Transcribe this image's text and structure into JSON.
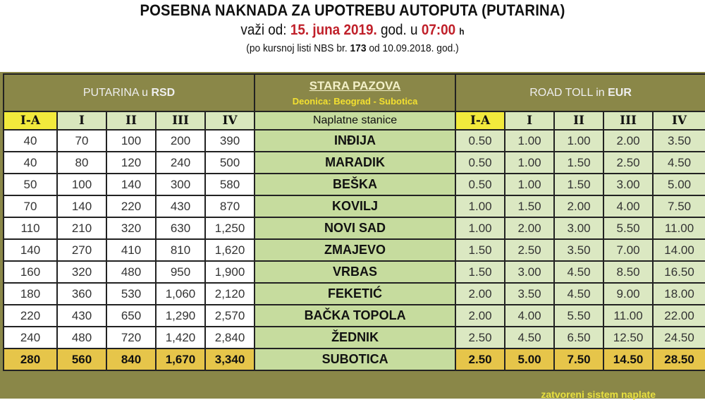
{
  "title": "POSEBNA NAKNADA ZA UPOTREBU AUTOPUTA (PUTARINA)",
  "validity": {
    "prefix": "važi od:",
    "date": "15. juna 2019.",
    "mid": "god. u",
    "time": "07:00",
    "unit": "h"
  },
  "rate_note": {
    "prefix": "(po kursnoj listi NBS br.",
    "number": "173",
    "suffix": "od 10.09.2018. god.)"
  },
  "rsd_header": {
    "text": "PUTARINA u",
    "currency": "RSD"
  },
  "eur_header": {
    "text": "ROAD TOLL in",
    "currency": "EUR"
  },
  "station_header": {
    "title": "STARA PAZOVA",
    "section": "Deonica: Beograd - Subotica",
    "column": "Naplatne stanice"
  },
  "categories": [
    "I-A",
    "I",
    "II",
    "III",
    "IV"
  ],
  "rows": [
    {
      "station": "INĐIJA",
      "rsd": [
        "40",
        "70",
        "100",
        "200",
        "390"
      ],
      "eur": [
        "0.50",
        "1.00",
        "1.00",
        "2.00",
        "3.50"
      ]
    },
    {
      "station": "MARADIK",
      "rsd": [
        "40",
        "80",
        "120",
        "240",
        "500"
      ],
      "eur": [
        "0.50",
        "1.00",
        "1.50",
        "2.50",
        "4.50"
      ]
    },
    {
      "station": "BEŠKA",
      "rsd": [
        "50",
        "100",
        "140",
        "300",
        "580"
      ],
      "eur": [
        "0.50",
        "1.00",
        "1.50",
        "3.00",
        "5.00"
      ]
    },
    {
      "station": "KOVILJ",
      "rsd": [
        "70",
        "140",
        "220",
        "430",
        "870"
      ],
      "eur": [
        "1.00",
        "1.50",
        "2.00",
        "4.00",
        "7.50"
      ]
    },
    {
      "station": "NOVI SAD",
      "rsd": [
        "110",
        "210",
        "320",
        "630",
        "1,250"
      ],
      "eur": [
        "1.00",
        "2.00",
        "3.00",
        "5.50",
        "11.00"
      ]
    },
    {
      "station": "ZMAJEVO",
      "rsd": [
        "140",
        "270",
        "410",
        "810",
        "1,620"
      ],
      "eur": [
        "1.50",
        "2.50",
        "3.50",
        "7.00",
        "14.00"
      ]
    },
    {
      "station": "VRBAS",
      "rsd": [
        "160",
        "320",
        "480",
        "950",
        "1,900"
      ],
      "eur": [
        "1.50",
        "3.00",
        "4.50",
        "8.50",
        "16.50"
      ]
    },
    {
      "station": "FEKETIĆ",
      "rsd": [
        "180",
        "360",
        "530",
        "1,060",
        "2,120"
      ],
      "eur": [
        "2.00",
        "3.50",
        "4.50",
        "9.00",
        "18.00"
      ]
    },
    {
      "station": "BAČKA TOPOLA",
      "rsd": [
        "220",
        "430",
        "650",
        "1,290",
        "2,570"
      ],
      "eur": [
        "2.00",
        "4.00",
        "5.50",
        "11.00",
        "22.00"
      ]
    },
    {
      "station": "ŽEDNIK",
      "rsd": [
        "240",
        "480",
        "720",
        "1,420",
        "2,840"
      ],
      "eur": [
        "2.50",
        "4.50",
        "6.50",
        "12.50",
        "24.50"
      ]
    },
    {
      "station": "SUBOTICA",
      "rsd": [
        "280",
        "560",
        "840",
        "1,670",
        "3,340"
      ],
      "eur": [
        "2.50",
        "5.00",
        "7.50",
        "14.50",
        "28.50"
      ]
    }
  ],
  "footer_note": "zatvoreni sistem naplate",
  "colors": {
    "frame": "#8a8748",
    "station": "#c6dc9e",
    "eur_cell": "#dbe8c2",
    "highlight_yellow": "#f2ea3c",
    "last_row": "#e6c54a",
    "red_text": "#c0202a"
  }
}
